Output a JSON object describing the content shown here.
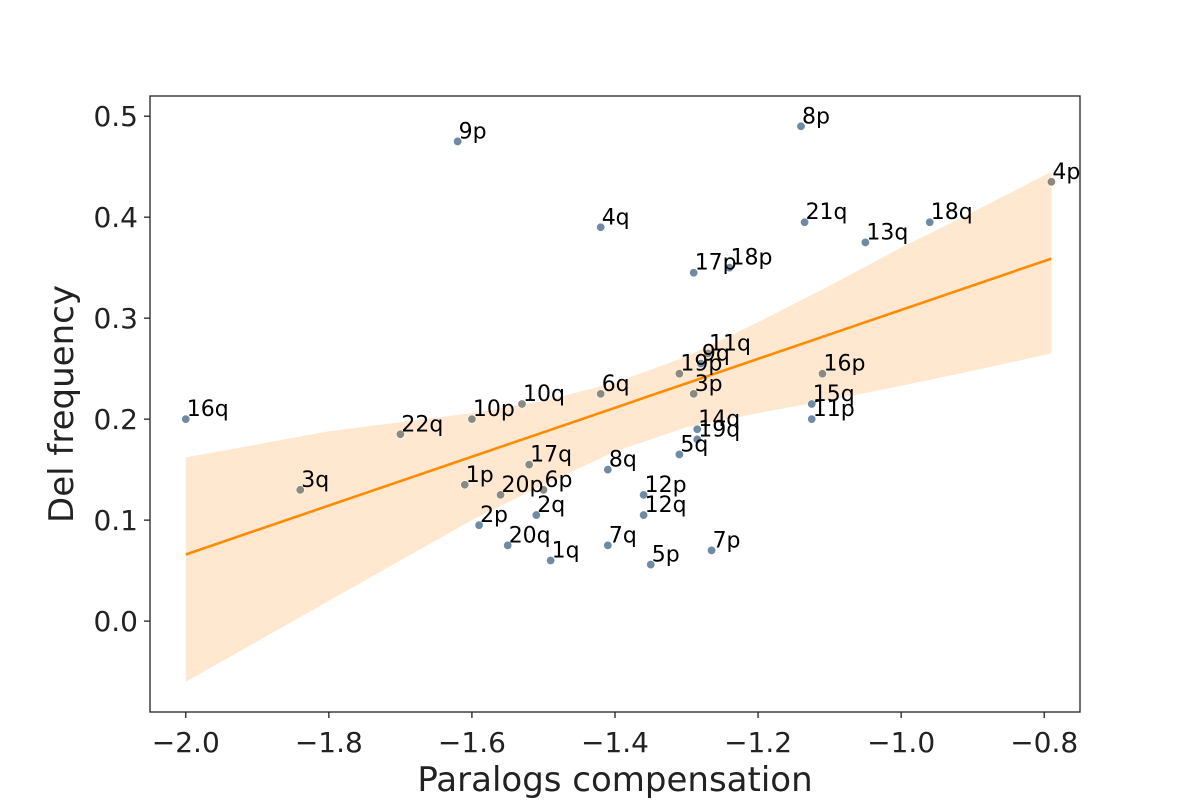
{
  "chart_data": {
    "type": "scatter",
    "title": "",
    "xlabel": "Paralogs compensation",
    "ylabel": "Del frequency",
    "xlim": [
      -2.05,
      -0.75
    ],
    "ylim": [
      -0.09,
      0.52
    ],
    "xticks": [
      -2.0,
      -1.8,
      -1.6,
      -1.4,
      -1.2,
      -1.0,
      -0.8
    ],
    "xtick_labels": [
      "−2.0",
      "−1.8",
      "−1.6",
      "−1.4",
      "−1.2",
      "−1.0",
      "−0.8"
    ],
    "yticks": [
      0.0,
      0.1,
      0.2,
      0.3,
      0.4,
      0.5
    ],
    "ytick_labels": [
      "0.0",
      "0.1",
      "0.2",
      "0.3",
      "0.4",
      "0.5"
    ],
    "grid": false,
    "colors": {
      "point_blue": "#6e8ba3",
      "point_gray": "#8a8a80",
      "fit_line": "#ff8c00",
      "ci_band": "#ffe8cf"
    },
    "fit": {
      "x": [
        -2.0,
        -0.79
      ],
      "y": [
        0.066,
        0.359
      ]
    },
    "confidence_band": [
      {
        "x": -2.0,
        "lo": -0.06,
        "hi": 0.162
      },
      {
        "x": -1.8,
        "lo": 0.02,
        "hi": 0.188
      },
      {
        "x": -1.6,
        "lo": 0.1,
        "hi": 0.206
      },
      {
        "x": -1.5,
        "lo": 0.135,
        "hi": 0.218
      },
      {
        "x": -1.4,
        "lo": 0.168,
        "hi": 0.236
      },
      {
        "x": -1.3,
        "lo": 0.192,
        "hi": 0.262
      },
      {
        "x": -1.2,
        "lo": 0.206,
        "hi": 0.296
      },
      {
        "x": -1.1,
        "lo": 0.219,
        "hi": 0.332
      },
      {
        "x": -1.0,
        "lo": 0.233,
        "hi": 0.37
      },
      {
        "x": -0.9,
        "lo": 0.248,
        "hi": 0.405
      },
      {
        "x": -0.79,
        "lo": 0.265,
        "hi": 0.445
      }
    ],
    "points": [
      {
        "label": "16q",
        "x": -2.0,
        "y": 0.2,
        "color": "blue"
      },
      {
        "label": "3q",
        "x": -1.84,
        "y": 0.13,
        "color": "gray"
      },
      {
        "label": "22q",
        "x": -1.7,
        "y": 0.185,
        "color": "gray"
      },
      {
        "label": "9p",
        "x": -1.62,
        "y": 0.475,
        "color": "blue"
      },
      {
        "label": "10p",
        "x": -1.6,
        "y": 0.2,
        "color": "gray"
      },
      {
        "label": "1p",
        "x": -1.61,
        "y": 0.135,
        "color": "gray"
      },
      {
        "label": "2p",
        "x": -1.59,
        "y": 0.095,
        "color": "blue"
      },
      {
        "label": "20p",
        "x": -1.56,
        "y": 0.125,
        "color": "gray"
      },
      {
        "label": "20q",
        "x": -1.55,
        "y": 0.075,
        "color": "blue"
      },
      {
        "label": "10q",
        "x": -1.53,
        "y": 0.215,
        "color": "gray"
      },
      {
        "label": "17q",
        "x": -1.52,
        "y": 0.155,
        "color": "gray"
      },
      {
        "label": "2q",
        "x": -1.51,
        "y": 0.105,
        "color": "blue"
      },
      {
        "label": "6p",
        "x": -1.5,
        "y": 0.13,
        "color": "gray"
      },
      {
        "label": "1q",
        "x": -1.49,
        "y": 0.06,
        "color": "blue"
      },
      {
        "label": "4q",
        "x": -1.42,
        "y": 0.39,
        "color": "blue"
      },
      {
        "label": "6q",
        "x": -1.42,
        "y": 0.225,
        "color": "gray"
      },
      {
        "label": "8q",
        "x": -1.41,
        "y": 0.15,
        "color": "blue"
      },
      {
        "label": "7q",
        "x": -1.41,
        "y": 0.075,
        "color": "blue"
      },
      {
        "label": "12p",
        "x": -1.36,
        "y": 0.125,
        "color": "blue"
      },
      {
        "label": "12q",
        "x": -1.36,
        "y": 0.105,
        "color": "blue"
      },
      {
        "label": "5p",
        "x": -1.35,
        "y": 0.056,
        "color": "blue"
      },
      {
        "label": "5q",
        "x": -1.31,
        "y": 0.165,
        "color": "blue"
      },
      {
        "label": "19p",
        "x": -1.31,
        "y": 0.245,
        "color": "gray"
      },
      {
        "label": "3p",
        "x": -1.29,
        "y": 0.225,
        "color": "gray"
      },
      {
        "label": "17p",
        "x": -1.29,
        "y": 0.345,
        "color": "blue"
      },
      {
        "label": "14q",
        "x": -1.285,
        "y": 0.19,
        "color": "blue"
      },
      {
        "label": "19q",
        "x": -1.285,
        "y": 0.18,
        "color": "blue"
      },
      {
        "label": "9q",
        "x": -1.28,
        "y": 0.255,
        "color": "blue"
      },
      {
        "label": "11q",
        "x": -1.27,
        "y": 0.265,
        "color": "gray"
      },
      {
        "label": "7p",
        "x": -1.265,
        "y": 0.07,
        "color": "blue"
      },
      {
        "label": "18p",
        "x": -1.24,
        "y": 0.35,
        "color": "blue"
      },
      {
        "label": "8p",
        "x": -1.14,
        "y": 0.49,
        "color": "blue"
      },
      {
        "label": "21q",
        "x": -1.135,
        "y": 0.395,
        "color": "blue"
      },
      {
        "label": "15q",
        "x": -1.125,
        "y": 0.215,
        "color": "blue"
      },
      {
        "label": "11p",
        "x": -1.125,
        "y": 0.2,
        "color": "blue"
      },
      {
        "label": "16p",
        "x": -1.11,
        "y": 0.245,
        "color": "gray"
      },
      {
        "label": "13q",
        "x": -1.05,
        "y": 0.375,
        "color": "blue"
      },
      {
        "label": "18q",
        "x": -0.96,
        "y": 0.395,
        "color": "blue"
      },
      {
        "label": "4p",
        "x": -0.79,
        "y": 0.435,
        "color": "gray"
      }
    ]
  }
}
